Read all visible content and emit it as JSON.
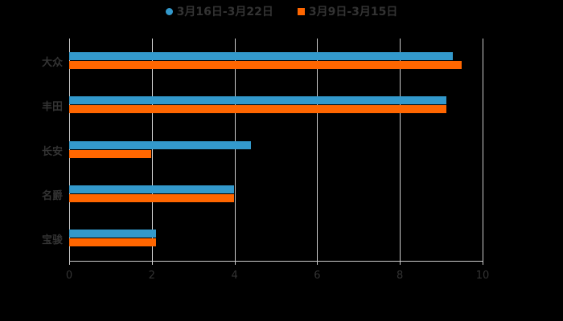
{
  "chart_data": {
    "type": "bar",
    "orientation": "horizontal",
    "title": "",
    "xlabel": "",
    "ylabel": "",
    "categories": [
      "大众",
      "丰田",
      "长安",
      "名爵",
      "宝骏"
    ],
    "series": [
      {
        "name": "3月16日-3月22日",
        "color": "#3399cc",
        "values": [
          9.28,
          9.12,
          4.4,
          3.99,
          2.1
        ]
      },
      {
        "name": "3月9日-3月15日",
        "color": "#ff6600",
        "values": [
          9.49,
          9.12,
          1.98,
          3.99,
          2.1
        ]
      }
    ],
    "xlim": [
      0,
      10
    ],
    "x_ticks": [
      "0",
      "2",
      "4",
      "6",
      "8",
      "10"
    ],
    "grid": true,
    "legend_position": "top"
  },
  "legend": {
    "items": [
      {
        "label": "3月16日-3月22日",
        "color": "#3399cc",
        "marker": "circle"
      },
      {
        "label": "3月9日-3月15日",
        "color": "#ff6600",
        "marker": "square"
      }
    ]
  },
  "colors": {
    "background": "#000000",
    "text": "#333333",
    "grid": "#cccccc"
  }
}
